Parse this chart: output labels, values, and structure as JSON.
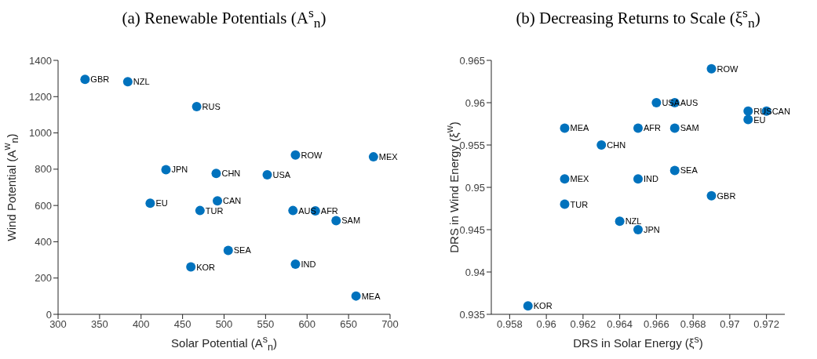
{
  "chart_data": [
    {
      "type": "scatter",
      "title": "(a) Renewable Potentials (A$^{s}$$_{n}$)",
      "xlabel": "Solar Potential (A$^{s}$$_{n}$)",
      "ylabel": "Wind Potential (A$^{w}$$_{n}$)",
      "x": [
        332.5,
        384,
        467,
        586,
        680,
        430,
        490.5,
        552,
        492,
        411,
        471,
        583,
        610,
        635,
        505,
        460,
        586,
        659
      ],
      "series": [
        {
          "color": "#0072bd",
          "values": [
            1295,
            1282,
            1145,
            878,
            868,
            797,
            777,
            769,
            625,
            613,
            572,
            572,
            570,
            516,
            352,
            261,
            277,
            101
          ]
        }
      ],
      "xlim": [
        300,
        700
      ],
      "xticks": [
        300,
        350,
        400,
        450,
        500,
        550,
        600,
        650,
        700
      ],
      "ylim": [
        0,
        1400
      ],
      "yticks": [
        0,
        200,
        400,
        600,
        800,
        1000,
        1200,
        1400
      ],
      "marker": "circle",
      "annotations": [
        {
          "text": "GBR",
          "x": 332.5,
          "y": 1295
        },
        {
          "text": "NZL",
          "x": 384,
          "y": 1282
        },
        {
          "text": "RUS",
          "x": 467,
          "y": 1145
        },
        {
          "text": "ROW",
          "x": 586,
          "y": 878
        },
        {
          "text": "MEX",
          "x": 680,
          "y": 868
        },
        {
          "text": "JPN",
          "x": 430,
          "y": 797
        },
        {
          "text": "CHN",
          "x": 490.5,
          "y": 777
        },
        {
          "text": "USA",
          "x": 552,
          "y": 769
        },
        {
          "text": "CAN",
          "x": 492,
          "y": 625
        },
        {
          "text": "EU",
          "x": 411,
          "y": 613
        },
        {
          "text": "TUR",
          "x": 471,
          "y": 572
        },
        {
          "text": "AUS",
          "x": 583,
          "y": 572
        },
        {
          "text": "AFR",
          "x": 610,
          "y": 570
        },
        {
          "text": "SAM",
          "x": 635,
          "y": 516
        },
        {
          "text": "SEA",
          "x": 505,
          "y": 352
        },
        {
          "text": "KOR",
          "x": 460,
          "y": 261
        },
        {
          "text": "IND",
          "x": 586,
          "y": 277
        },
        {
          "text": "MEA",
          "x": 659,
          "y": 101
        }
      ]
    },
    {
      "type": "scatter",
      "title": "(b) Decreasing Returns to Scale (ξ$^{s}$$_{n}$)",
      "xlabel": "DRS in Solar Energy (ξ$^{s}$)",
      "ylabel": "DRS in Wind Energy (ξ$^{w}$)",
      "x": [
        0.969,
        0.966,
        0.967,
        0.971,
        0.972,
        0.971,
        0.961,
        0.965,
        0.967,
        0.963,
        0.967,
        0.961,
        0.965,
        0.969,
        0.961,
        0.964,
        0.965,
        0.959
      ],
      "series": [
        {
          "color": "#0072bd",
          "values": [
            0.964,
            0.96,
            0.96,
            0.959,
            0.959,
            0.958,
            0.957,
            0.957,
            0.957,
            0.955,
            0.952,
            0.951,
            0.951,
            0.949,
            0.948,
            0.946,
            0.945,
            0.936
          ]
        }
      ],
      "xlim": [
        0.957,
        0.973
      ],
      "xticks": [
        0.958,
        0.96,
        0.962,
        0.964,
        0.966,
        0.968,
        0.97,
        0.972
      ],
      "ylim": [
        0.935,
        0.965
      ],
      "yticks": [
        0.935,
        0.94,
        0.945,
        0.95,
        0.955,
        0.96,
        0.965
      ],
      "marker": "circle",
      "annotations": [
        {
          "text": "ROW",
          "x": 0.969,
          "y": 0.964
        },
        {
          "text": "USA",
          "x": 0.966,
          "y": 0.96
        },
        {
          "text": "AUS",
          "x": 0.967,
          "y": 0.96
        },
        {
          "text": "RUS",
          "x": 0.971,
          "y": 0.959
        },
        {
          "text": "CAN",
          "x": 0.972,
          "y": 0.959
        },
        {
          "text": "EU",
          "x": 0.971,
          "y": 0.958
        },
        {
          "text": "MEA",
          "x": 0.961,
          "y": 0.957
        },
        {
          "text": "AFR",
          "x": 0.965,
          "y": 0.957
        },
        {
          "text": "SAM",
          "x": 0.967,
          "y": 0.957
        },
        {
          "text": "CHN",
          "x": 0.963,
          "y": 0.955
        },
        {
          "text": "SEA",
          "x": 0.967,
          "y": 0.952
        },
        {
          "text": "MEX",
          "x": 0.961,
          "y": 0.951
        },
        {
          "text": "IND",
          "x": 0.965,
          "y": 0.951
        },
        {
          "text": "GBR",
          "x": 0.969,
          "y": 0.949
        },
        {
          "text": "TUR",
          "x": 0.961,
          "y": 0.948
        },
        {
          "text": "NZL",
          "x": 0.964,
          "y": 0.946
        },
        {
          "text": "JPN",
          "x": 0.965,
          "y": 0.945
        },
        {
          "text": "KOR",
          "x": 0.959,
          "y": 0.936
        }
      ]
    }
  ]
}
